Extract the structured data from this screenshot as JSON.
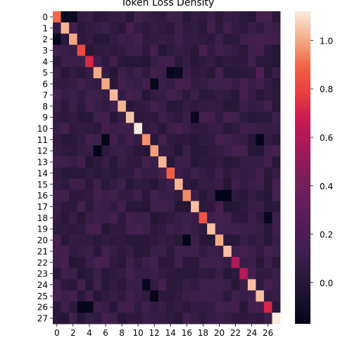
{
  "chart_data": {
    "type": "heatmap",
    "title": "Token Loss Density",
    "rows": 28,
    "cols": 28,
    "x_tick_labels": [
      "0",
      "2",
      "4",
      "6",
      "8",
      "10",
      "12",
      "14",
      "16",
      "18",
      "20",
      "22",
      "24",
      "26"
    ],
    "y_tick_labels": [
      "0",
      "1",
      "2",
      "3",
      "4",
      "5",
      "6",
      "7",
      "8",
      "9",
      "10",
      "11",
      "12",
      "13",
      "14",
      "15",
      "16",
      "17",
      "18",
      "19",
      "20",
      "21",
      "22",
      "23",
      "24",
      "25",
      "26",
      "27"
    ],
    "colorbar": {
      "min": -0.17,
      "max": 1.12,
      "ticks": [
        0.0,
        0.2,
        0.4,
        0.6,
        0.8,
        1.0
      ],
      "tick_labels": [
        "0.0",
        "0.2",
        "0.4",
        "0.6",
        "0.8",
        "1.0"
      ],
      "colormap": "rocket"
    },
    "diagonal_values": [
      0.9,
      1.02,
      1.0,
      0.82,
      0.72,
      1.0,
      1.0,
      1.03,
      1.02,
      1.05,
      1.12,
      0.96,
      0.98,
      1.02,
      0.88,
      1.02,
      0.95,
      1.04,
      0.85,
      1.04,
      1.0,
      1.04,
      0.6,
      0.62,
      1.04,
      1.04,
      0.72,
      1.12
    ],
    "off_diagonal_typical": 0.08,
    "notable_cells": [
      {
        "row": 0,
        "col": 1,
        "value": -0.14
      },
      {
        "row": 0,
        "col": 2,
        "value": -0.12
      },
      {
        "row": 2,
        "col": 0,
        "value": -0.15
      },
      {
        "row": 5,
        "col": 14,
        "value": -0.15
      },
      {
        "row": 5,
        "col": 15,
        "value": -0.12
      },
      {
        "row": 5,
        "col": 25,
        "value": 0.22
      },
      {
        "row": 6,
        "col": 12,
        "value": -0.15
      },
      {
        "row": 9,
        "col": 17,
        "value": -0.14
      },
      {
        "row": 11,
        "col": 6,
        "value": -0.16
      },
      {
        "row": 11,
        "col": 25,
        "value": -0.16
      },
      {
        "row": 12,
        "col": 5,
        "value": -0.17
      },
      {
        "row": 16,
        "col": 20,
        "value": -0.17
      },
      {
        "row": 16,
        "col": 21,
        "value": -0.17
      },
      {
        "row": 18,
        "col": 26,
        "value": -0.15
      },
      {
        "row": 20,
        "col": 16,
        "value": -0.17
      },
      {
        "row": 24,
        "col": 11,
        "value": -0.15
      },
      {
        "row": 25,
        "col": 12,
        "value": -0.16
      },
      {
        "row": 26,
        "col": 3,
        "value": -0.15
      },
      {
        "row": 26,
        "col": 4,
        "value": -0.15
      }
    ]
  }
}
